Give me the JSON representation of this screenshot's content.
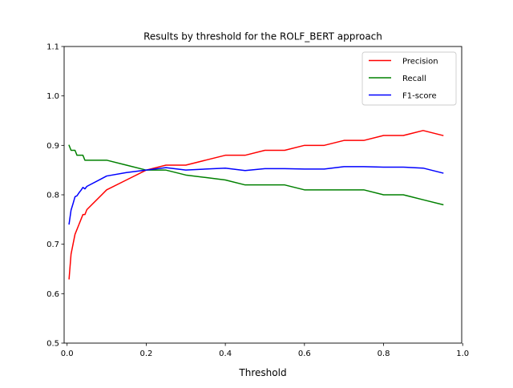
{
  "chart_data": {
    "type": "line",
    "title": "Results by threshold for the ROLF_BERT approach",
    "xlabel": "Threshold",
    "ylabel": "",
    "xlim": [
      -0.0075,
      0.9975
    ],
    "ylim": [
      0.5,
      1.1
    ],
    "xticks": [
      0.0,
      0.2,
      0.4,
      0.6,
      0.8,
      1.0
    ],
    "yticks": [
      0.5,
      0.6,
      0.7,
      0.8,
      0.9,
      1.0,
      1.1
    ],
    "xtick_labels": [
      "0.0",
      "0.2",
      "0.4",
      "0.6",
      "0.8",
      "1.0"
    ],
    "ytick_labels": [
      "0.5",
      "0.6",
      "0.7",
      "0.8",
      "0.9",
      "1.0",
      "1.1"
    ],
    "grid": false,
    "legend_position": "top-right",
    "series": [
      {
        "name": "Precision",
        "color": "#ff0000",
        "x": [
          0.005,
          0.01,
          0.015,
          0.02,
          0.025,
          0.03,
          0.035,
          0.04,
          0.045,
          0.05,
          0.1,
          0.15,
          0.2,
          0.25,
          0.3,
          0.35,
          0.4,
          0.45,
          0.5,
          0.55,
          0.6,
          0.65,
          0.7,
          0.75,
          0.8,
          0.85,
          0.9,
          0.95
        ],
        "y": [
          0.63,
          0.68,
          0.7,
          0.72,
          0.73,
          0.74,
          0.75,
          0.76,
          0.76,
          0.77,
          0.81,
          0.83,
          0.85,
          0.86,
          0.86,
          0.87,
          0.88,
          0.88,
          0.89,
          0.89,
          0.9,
          0.9,
          0.91,
          0.91,
          0.92,
          0.92,
          0.93,
          0.92
        ]
      },
      {
        "name": "Recall",
        "color": "#008000",
        "x": [
          0.005,
          0.01,
          0.015,
          0.02,
          0.025,
          0.03,
          0.035,
          0.04,
          0.045,
          0.05,
          0.1,
          0.15,
          0.2,
          0.25,
          0.3,
          0.35,
          0.4,
          0.45,
          0.5,
          0.55,
          0.6,
          0.65,
          0.7,
          0.75,
          0.8,
          0.85,
          0.9,
          0.95
        ],
        "y": [
          0.9,
          0.89,
          0.89,
          0.89,
          0.88,
          0.88,
          0.88,
          0.88,
          0.87,
          0.87,
          0.87,
          0.86,
          0.85,
          0.85,
          0.84,
          0.835,
          0.83,
          0.82,
          0.82,
          0.82,
          0.81,
          0.81,
          0.81,
          0.81,
          0.8,
          0.8,
          0.79,
          0.78
        ]
      },
      {
        "name": "F1-score",
        "color": "#0000ff",
        "x": [
          0.005,
          0.01,
          0.015,
          0.02,
          0.025,
          0.03,
          0.035,
          0.04,
          0.045,
          0.05,
          0.1,
          0.15,
          0.2,
          0.25,
          0.3,
          0.35,
          0.4,
          0.45,
          0.5,
          0.55,
          0.6,
          0.65,
          0.7,
          0.75,
          0.8,
          0.85,
          0.9,
          0.95
        ],
        "y": [
          0.741,
          0.769,
          0.782,
          0.796,
          0.798,
          0.804,
          0.809,
          0.815,
          0.812,
          0.817,
          0.838,
          0.845,
          0.85,
          0.855,
          0.85,
          0.852,
          0.854,
          0.849,
          0.853,
          0.853,
          0.852,
          0.852,
          0.857,
          0.857,
          0.856,
          0.856,
          0.854,
          0.844
        ]
      }
    ]
  }
}
